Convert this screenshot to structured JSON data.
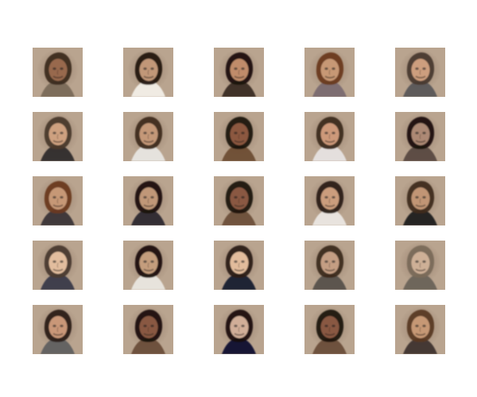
{
  "grid": {
    "rows": 5,
    "cols": 5,
    "tiles": [
      {
        "bg": "#b9a48f",
        "accent": "#6d4a2e",
        "hair": "#3b2a1e",
        "skin": "#9a6b4f",
        "shirt": "#7a6a5a",
        "icon": "face-portrait"
      },
      {
        "bg": "#0e0e12",
        "accent": "#6a7a3a",
        "hair": "#241810",
        "skin": "#c59a7a",
        "shirt": "#f2efe8",
        "icon": "face-portrait"
      },
      {
        "bg": "#020202",
        "accent": "#b89d7e",
        "hair": "#1a120d",
        "skin": "#c48f6c",
        "shirt": "#3a2a22",
        "icon": "face-portrait"
      },
      {
        "bg": "#8c7c90",
        "accent": "#a85a2a",
        "hair": "#6a3a1e",
        "skin": "#c99a76",
        "shirt": "#7a6a70",
        "icon": "face-portrait"
      },
      {
        "bg": "#d9d8df",
        "accent": "#6c6a74",
        "hair": "#4a3a30",
        "skin": "#d0a080",
        "shirt": "#5a5658",
        "icon": "face-portrait"
      },
      {
        "bg": "#e9e7e4",
        "accent": "#b7a88e",
        "hair": "#4a3a2a",
        "skin": "#d1a383",
        "shirt": "#2f2a2a",
        "icon": "face-portrait"
      },
      {
        "bg": "#2f4f86",
        "accent": "#c8c2c4",
        "hair": "#3e2c1c",
        "skin": "#c79b7a",
        "shirt": "#e8e6e2",
        "icon": "face-portrait"
      },
      {
        "bg": "#f0efe9",
        "accent": "#b8a27c",
        "hair": "#1b130f",
        "skin": "#8f5a40",
        "shirt": "#6e4e34",
        "icon": "face-portrait"
      },
      {
        "bg": "#d6d1cf",
        "accent": "#8a8a8a",
        "hair": "#3b2a1e",
        "skin": "#d09c7c",
        "shirt": "#e7e3e1",
        "icon": "face-portrait"
      },
      {
        "bg": "#10121a",
        "accent": "#3a3a4a",
        "hair": "#1a120d",
        "skin": "#b08c76",
        "shirt": "#5a4a42",
        "icon": "face-portrait"
      },
      {
        "bg": "#6a5f7d",
        "accent": "#a06a3a",
        "hair": "#6a3a20",
        "skin": "#c89a78",
        "shirt": "#3a3436",
        "icon": "face-portrait"
      },
      {
        "bg": "#0b0b0e",
        "accent": "#2a2a3a",
        "hair": "#1a120d",
        "skin": "#c49a7a",
        "shirt": "#2a2630",
        "icon": "face-portrait"
      },
      {
        "bg": "#e8ded1",
        "accent": "#b19a7a",
        "hair": "#1c140f",
        "skin": "#8d5b44",
        "shirt": "#6c4f3a",
        "icon": "face-portrait"
      },
      {
        "bg": "#1f2a6a",
        "accent": "#d8d5d6",
        "hair": "#2b2018",
        "skin": "#cfa080",
        "shirt": "#ebe7e3",
        "icon": "face-portrait"
      },
      {
        "bg": "#f3f1ee",
        "accent": "#2e4a84",
        "hair": "#3e2c1c",
        "skin": "#c49877",
        "shirt": "#1e1c20",
        "icon": "face-portrait"
      },
      {
        "bg": "#3d3d4d",
        "accent": "#d2a07a",
        "hair": "#4a3a30",
        "skin": "#e6c0a0",
        "shirt": "#3a3a48",
        "icon": "face-portrait"
      },
      {
        "bg": "#0c0c10",
        "accent": "#2b2b2b",
        "hair": "#1a120d",
        "skin": "#c8a080",
        "shirt": "#eae7e0",
        "icon": "face-portrait"
      },
      {
        "bg": "#0c1a3a",
        "accent": "#c8b49a",
        "hair": "#2a1e16",
        "skin": "#e7c09f",
        "shirt": "#151c2f",
        "icon": "face-portrait"
      },
      {
        "bg": "#2a2a30",
        "accent": "#6a6a6e",
        "hair": "#3b2a1e",
        "skin": "#c7a186",
        "shirt": "#56514c",
        "icon": "face-portrait"
      },
      {
        "bg": "#6b6a66",
        "accent": "#c6ad88",
        "hair": "#7a6a5a",
        "skin": "#d0b199",
        "shirt": "#6a625a",
        "icon": "face-portrait"
      },
      {
        "bg": "#e0ded8",
        "accent": "#1a2f66",
        "hair": "#2b2018",
        "skin": "#cd9a7a",
        "shirt": "#5f5f60",
        "icon": "face-portrait"
      },
      {
        "bg": "#efece8",
        "accent": "#b5a38c",
        "hair": "#1a120d",
        "skin": "#8c5b44",
        "shirt": "#6a4e38",
        "icon": "face-portrait"
      },
      {
        "bg": "#123b86",
        "accent": "#d3cfc9",
        "hair": "#1a120d",
        "skin": "#d5b19b",
        "shirt": "#0a1230",
        "icon": "face-portrait"
      },
      {
        "bg": "#f2f0ec",
        "accent": "#b19a7a",
        "hair": "#1c140f",
        "skin": "#8c5a44",
        "shirt": "#6a4e38",
        "icon": "face-portrait"
      },
      {
        "bg": "#6a5e56",
        "accent": "#aa6a3a",
        "hair": "#5a3a24",
        "skin": "#c99a76",
        "shirt": "#3e3430",
        "icon": "face-portrait"
      }
    ]
  }
}
